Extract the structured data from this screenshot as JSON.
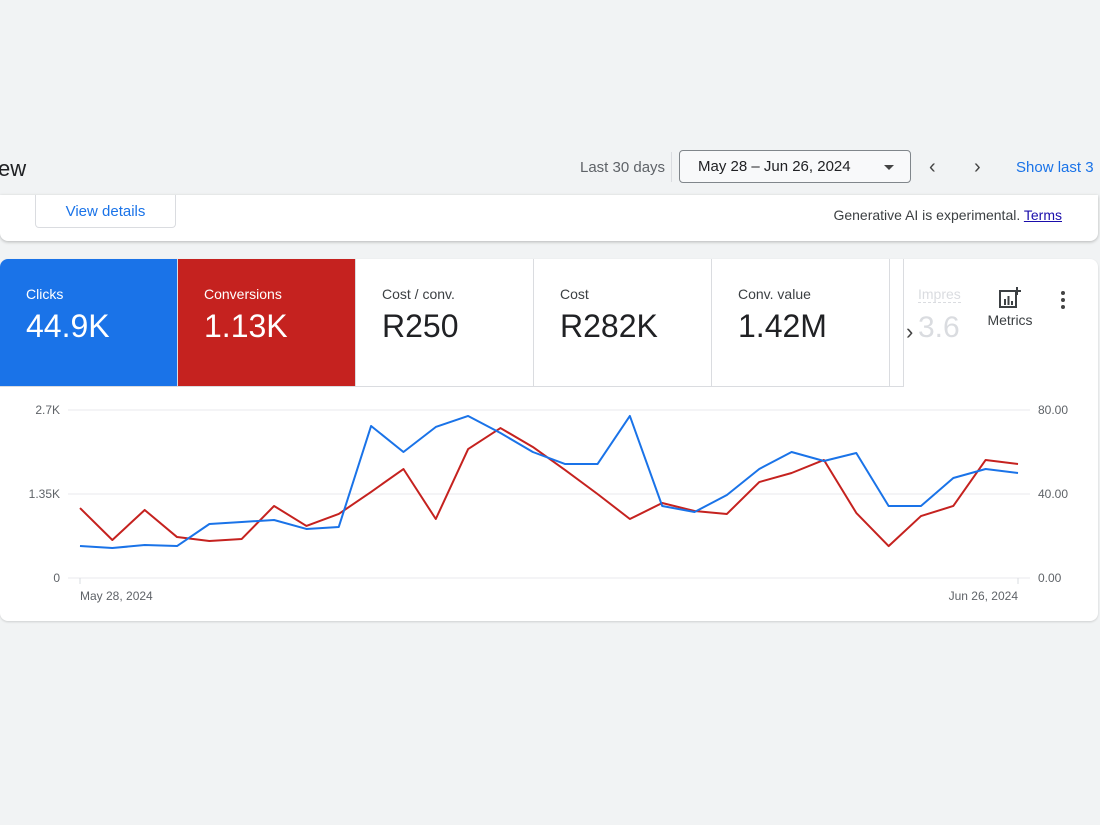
{
  "header": {
    "title": "ew",
    "range_label": "Last 30 days",
    "date_range": "May 28 – Jun 26, 2024",
    "show_last": "Show last 3"
  },
  "ai_card": {
    "view_details": "View details",
    "note": "Generative AI is experimental.",
    "terms": "Terms"
  },
  "metrics": [
    {
      "label": "Clicks",
      "value": "44.9K",
      "color": "#1a73e8"
    },
    {
      "label": "Conversions",
      "value": "1.13K",
      "color": "#c5221f"
    },
    {
      "label": "Cost / conv.",
      "value": "R250"
    },
    {
      "label": "Cost",
      "value": "R282K"
    },
    {
      "label": "Conv. value",
      "value": "1.42M"
    },
    {
      "label": "Impres",
      "value": "3.6"
    }
  ],
  "metrics_button": "Metrics",
  "chart_data": {
    "type": "line",
    "x_start": "May 28, 2024",
    "x_end": "Jun 26, 2024",
    "x_ticks": [
      "May 28, 2024",
      "Jun 26, 2024"
    ],
    "y_left": {
      "ticks": [
        "0",
        "1.35K",
        "2.7K"
      ],
      "range": [
        0,
        2700
      ]
    },
    "y_right": {
      "ticks": [
        "0.00",
        "40.00",
        "80.00"
      ],
      "range": [
        0,
        80
      ]
    },
    "grid": true,
    "series": [
      {
        "name": "Clicks",
        "axis": "left",
        "color": "#1a73e8",
        "values": [
          514,
          482,
          530,
          514,
          868,
          900,
          932,
          788,
          820,
          2443,
          2025,
          2427,
          2604,
          2330,
          2025,
          1832,
          1832,
          2604,
          1157,
          1061,
          1334,
          1752,
          2025,
          1880,
          2009,
          1157,
          1157,
          1607,
          1752,
          1688
        ]
      },
      {
        "name": "Conversions",
        "axis": "right",
        "color": "#c5221f",
        "values": [
          33.3,
          18.1,
          32.4,
          19.5,
          17.6,
          18.6,
          34.3,
          24.8,
          30.5,
          41,
          51.9,
          28.1,
          61.4,
          71.4,
          62.4,
          51.4,
          40,
          28.1,
          35.7,
          31.9,
          30.5,
          45.7,
          50,
          56.2,
          31,
          15.2,
          29.5,
          34.3,
          56.2,
          54.3
        ]
      }
    ]
  }
}
